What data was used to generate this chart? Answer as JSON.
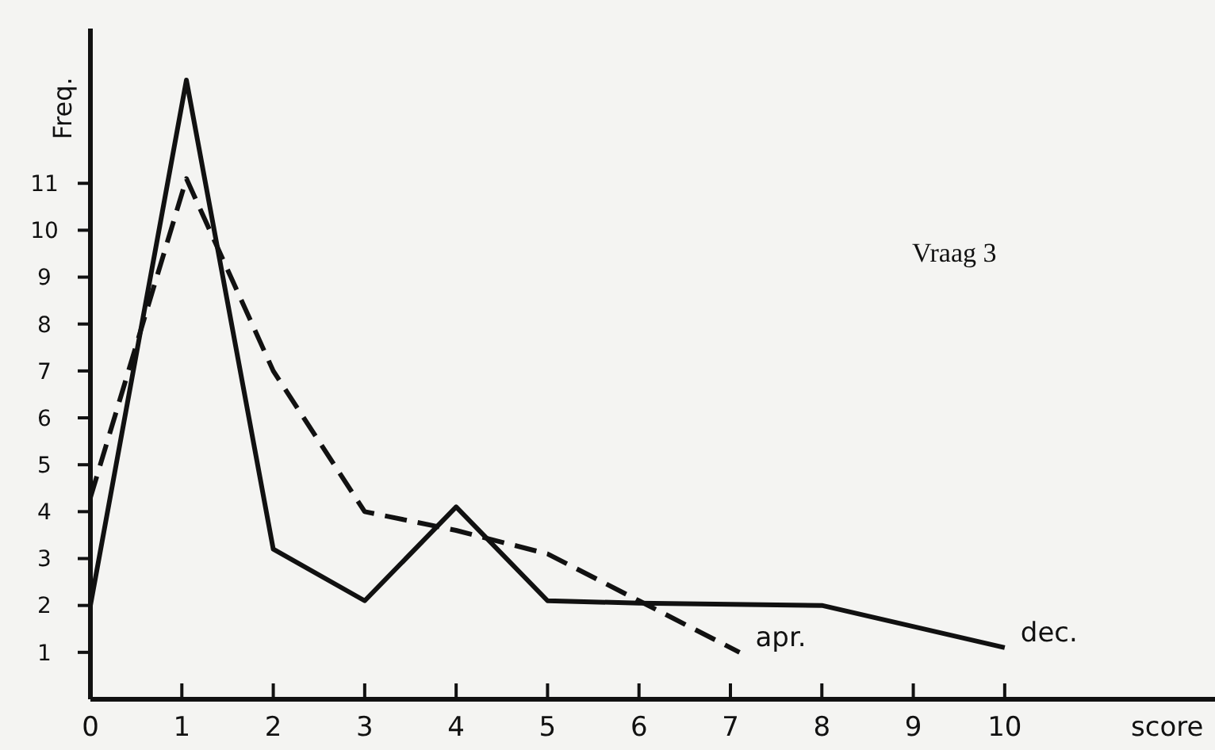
{
  "chart_data": {
    "type": "line",
    "title": "Vraag 3",
    "xlabel": "score",
    "ylabel": "Freq.",
    "xlim": [
      0,
      12.3
    ],
    "ylim": [
      0,
      14.3
    ],
    "xticks": [
      0,
      1,
      2,
      3,
      4,
      5,
      6,
      7,
      8,
      9,
      10
    ],
    "yticks": [
      1,
      2,
      3,
      4,
      5,
      6,
      7,
      8,
      9,
      10,
      11
    ],
    "grid": false,
    "marker": "none",
    "series": [
      {
        "name": "dec.",
        "color": "#111111",
        "line_style": "solid",
        "x": [
          0,
          1.05,
          2,
          3,
          4,
          5,
          6,
          8,
          10
        ],
        "values": [
          2,
          13.2,
          3.2,
          2.1,
          4.1,
          2.1,
          2.05,
          2,
          1.1
        ]
      },
      {
        "name": "apr.",
        "color": "#111111",
        "line_style": "dashed",
        "x": [
          0,
          1.05,
          2,
          3,
          4,
          5,
          6,
          7.1
        ],
        "values": [
          4.3,
          11.1,
          7,
          4,
          3.6,
          3.1,
          2.1,
          1
        ]
      }
    ]
  }
}
